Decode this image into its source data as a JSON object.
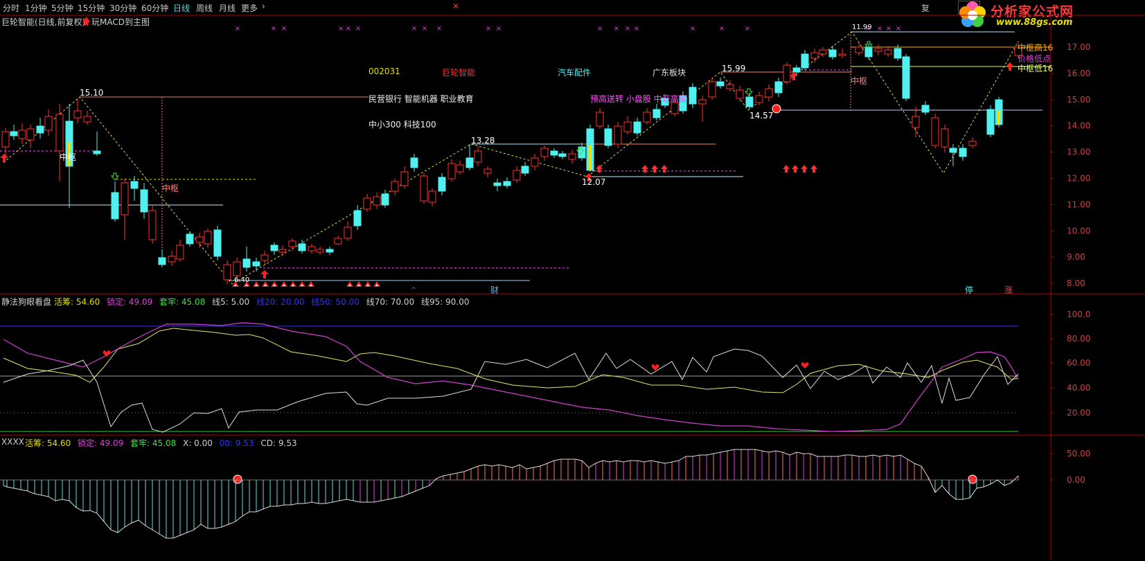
{
  "toolbar": {
    "periods": [
      "分时",
      "1分钟",
      "5分钟",
      "15分钟",
      "30分钟",
      "60分钟",
      "日线",
      "周线",
      "月线",
      "更多"
    ],
    "active": "日线",
    "restore": "复",
    "close": "✕"
  },
  "logo": {
    "title": "分析家公式网",
    "url": "www.88gs.com"
  },
  "chart_header": {
    "subtitle": "巨轮智能(日线,前复权)",
    "macd_label": "玩MACD到主图"
  },
  "stock_info": {
    "code": "002031",
    "name": "巨轮智能",
    "industry": "汽车配件",
    "region": "广东板块",
    "concepts1": "民营银行 智能机器 职业教育",
    "concepts2": "中小300 科技100",
    "concepts3": "预高送转 小盘股 中证高富"
  },
  "price_axis": {
    "ticks": [
      "17.00",
      "16.00",
      "15.00",
      "14.00",
      "13.00",
      "12.00",
      "11.00",
      "10.00",
      "9.00",
      "8.00"
    ]
  },
  "price_labels": {
    "p1": "15.10",
    "p2": "13.28",
    "p3": "15.99",
    "p4": "12.07",
    "p5": "14.57",
    "p6": "6.40",
    "p7": "11.99"
  },
  "zones": {
    "z1": "中枢",
    "z2": "中枢",
    "z3": "中枢",
    "hi": "中枢高16",
    "mid": "价格低点",
    "lo": "中枢低16"
  },
  "badges": {
    "cai": "财",
    "ting": "停",
    "zhang": "涨"
  },
  "indicator1": {
    "name": "静法狗眼看盘",
    "items": [
      {
        "label": "活筹: 54.60",
        "color": "#e0e000"
      },
      {
        "label": "锁定: 49.09",
        "color": "#e040e0"
      },
      {
        "label": "套牢: 45.08",
        "color": "#40e040"
      },
      {
        "label": "线5: 5.00",
        "color": "#d0d0d0"
      },
      {
        "label": "线20: 20.00",
        "color": "#3030ff"
      },
      {
        "label": "线50: 50.00",
        "color": "#3030ff"
      },
      {
        "label": "线70: 70.00",
        "color": "#d0d0d0"
      },
      {
        "label": "线95: 90.00",
        "color": "#d0d0d0"
      }
    ],
    "axis": [
      "100.0",
      "80.00",
      "60.00",
      "40.00",
      "20.00"
    ]
  },
  "indicator2": {
    "name": "XXXX",
    "items": [
      {
        "label": "活筹: 54.60",
        "color": "#e0e000"
      },
      {
        "label": "锁定: 49.09",
        "color": "#e040e0"
      },
      {
        "label": "套牢: 45.08",
        "color": "#40e040"
      },
      {
        "label": "X: 0.00",
        "color": "#d0d0d0"
      },
      {
        "label": "00: 9.53",
        "color": "#3030ff"
      },
      {
        "label": "CD: 9.53",
        "color": "#d0d0d0"
      }
    ],
    "axis": [
      "50.00",
      "0.00"
    ]
  },
  "colors": {
    "up": "#ff3030",
    "down": "#50f0f0",
    "grid": "#800000",
    "axis": "#b00000"
  }
}
